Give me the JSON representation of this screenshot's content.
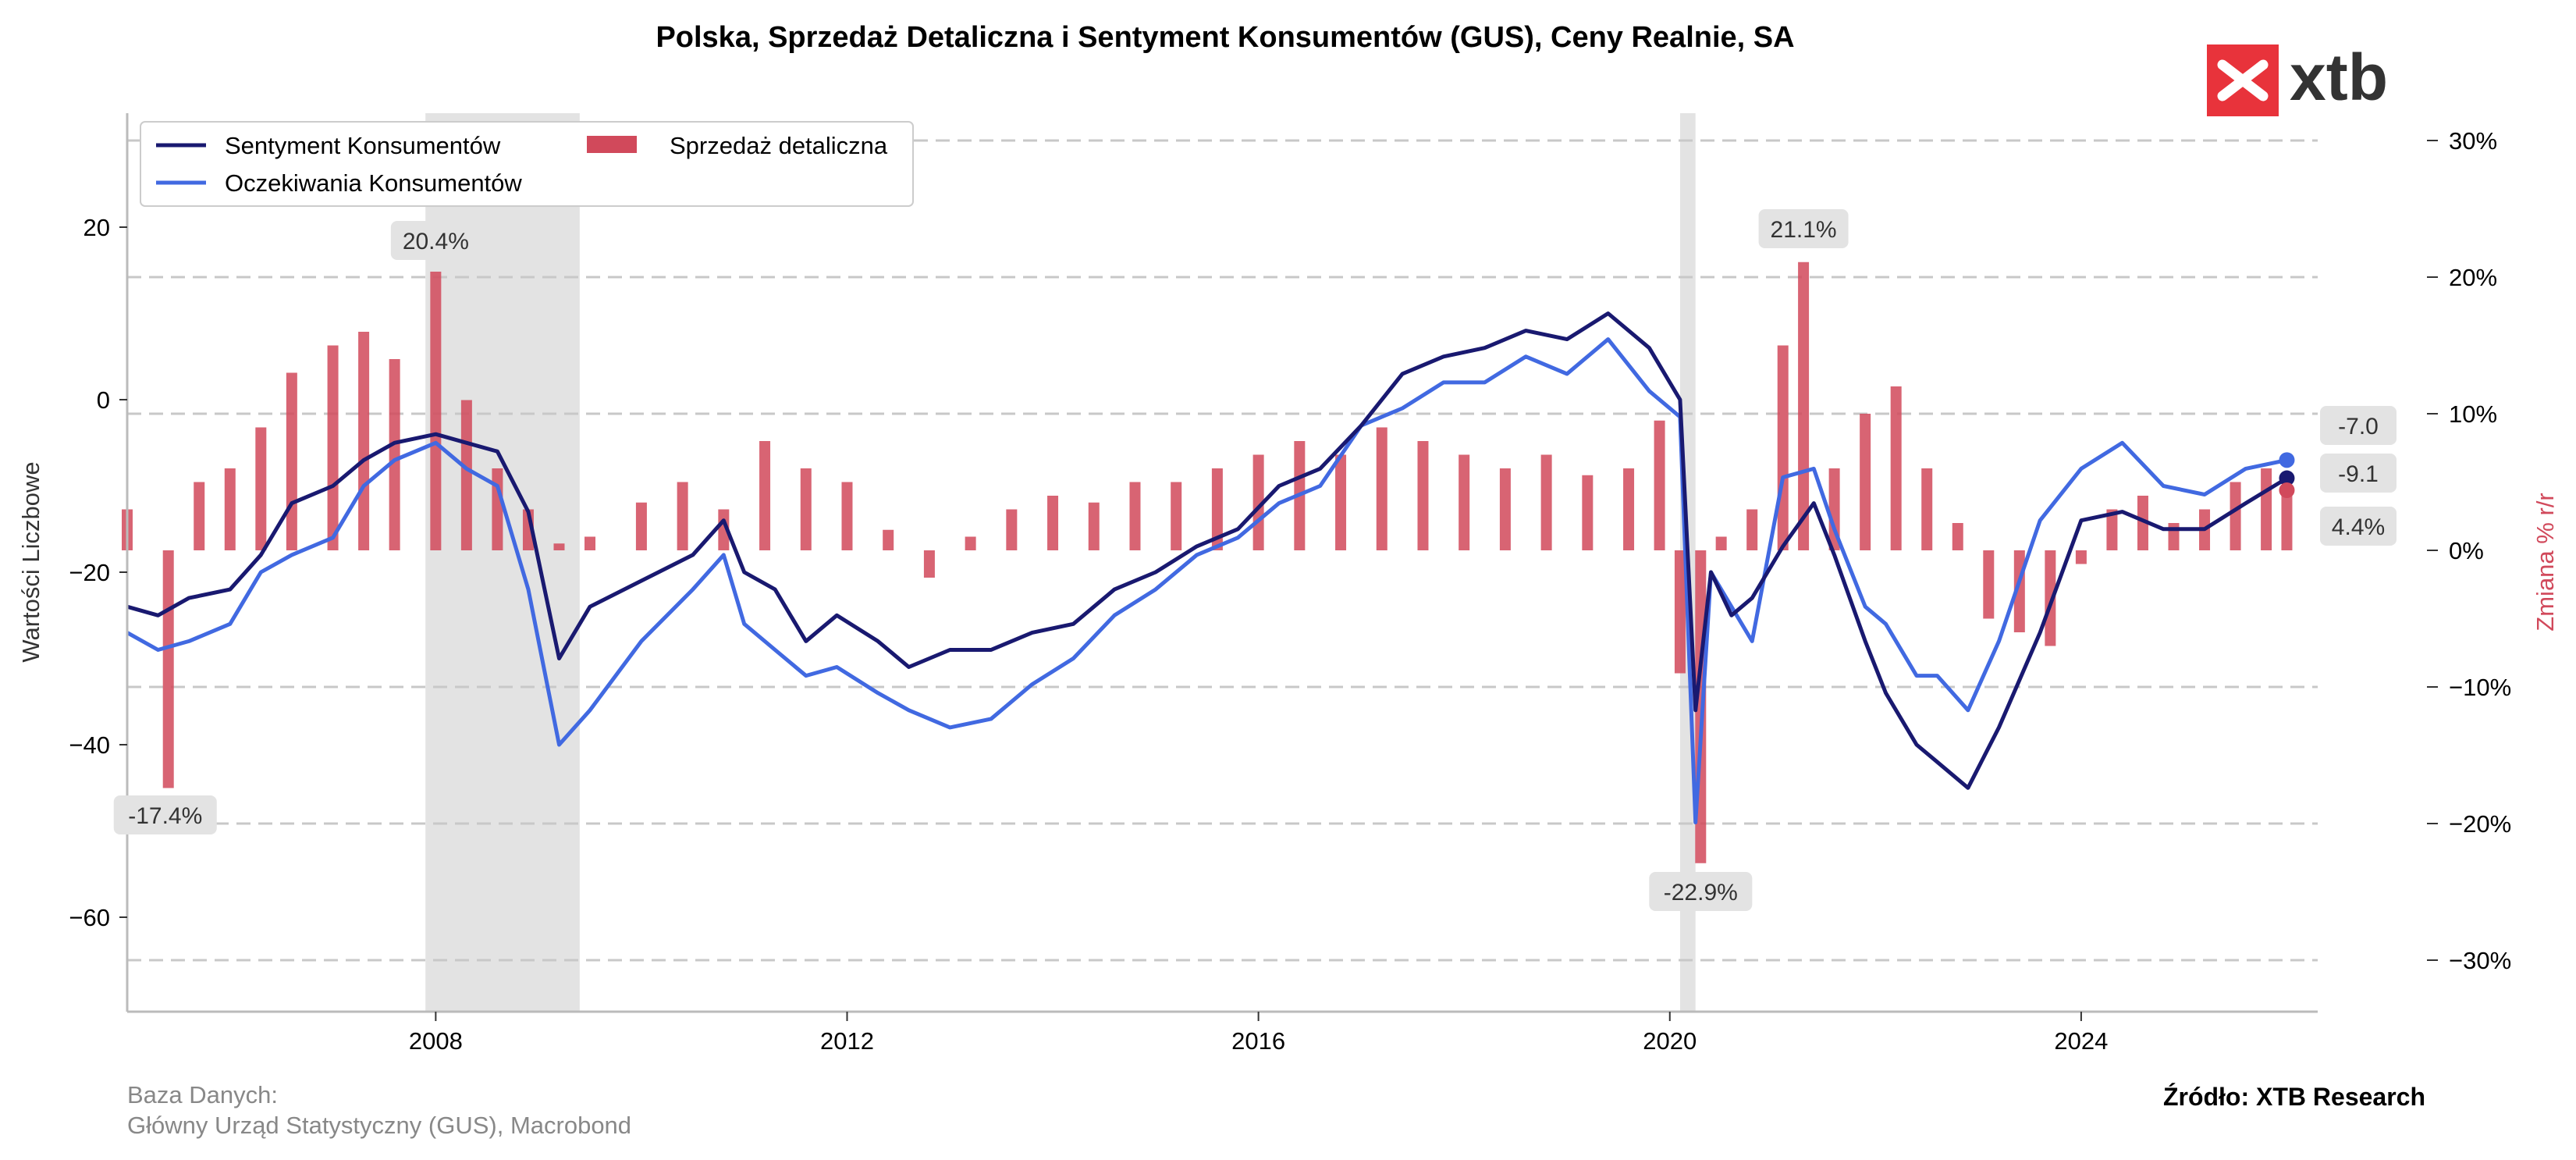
{
  "title": "Polska, Sprzedaż Detaliczna i Sentyment Konsumentów (GUS), Ceny Realnie, SA",
  "logo": {
    "text": "xtb",
    "color": "#e8333b"
  },
  "source": {
    "line1": "Baza Danych:",
    "line2": "Główny Urząd Statystyczny (GUS), Macrobond"
  },
  "credit": "Źródło: XTB Research",
  "colors": {
    "sentiment": "#191970",
    "expectations": "#4169e1",
    "retail": "#d1495b",
    "shade": "#e3e3e3",
    "grid": "#c8c8c8"
  },
  "chart_data": {
    "type": "line",
    "title": "Polska, Sprzedaż Detaliczna i Sentyment Konsumentów (GUS), Ceny Realnie, SA",
    "xlim": [
      2005.0,
      2026.3
    ],
    "x_ticks": [
      "2008",
      "2012",
      "2016",
      "2020",
      "2024"
    ],
    "ylabel": "Wartości Liczbowe",
    "ylim": [
      -71,
      33
    ],
    "y_ticks": [
      "20",
      "0",
      "−20",
      "−40",
      "−60"
    ],
    "y2label": "Zmiana % r/r",
    "y2lim": [
      -34,
      30.9
    ],
    "y2_ticks": [
      "30%",
      "20%",
      "10%",
      "0%",
      "−10%",
      "−20%",
      "−30%"
    ],
    "grid": "horizontal dashed",
    "legend_position": "top-left",
    "legend": [
      "Sentyment Konsumentów",
      "Oczekiwania Konsumentów",
      "Sprzedaż detaliczna"
    ],
    "shaded_periods": [
      [
        2007.9,
        2009.4
      ],
      [
        2020.1,
        2020.25
      ]
    ],
    "series": [
      {
        "name": "Sentyment Konsumentów",
        "axis": "left",
        "type": "line",
        "x": [
          2005.0,
          2005.3,
          2005.6,
          2006.0,
          2006.3,
          2006.6,
          2007.0,
          2007.3,
          2007.6,
          2008.0,
          2008.3,
          2008.6,
          2008.9,
          2009.2,
          2009.5,
          2010.0,
          2010.5,
          2010.8,
          2011.0,
          2011.3,
          2011.6,
          2011.9,
          2012.3,
          2012.6,
          2013.0,
          2013.4,
          2013.8,
          2014.2,
          2014.6,
          2015.0,
          2015.4,
          2015.8,
          2016.2,
          2016.6,
          2017.0,
          2017.4,
          2017.8,
          2018.2,
          2018.6,
          2019.0,
          2019.4,
          2019.8,
          2020.1,
          2020.25,
          2020.4,
          2020.6,
          2020.8,
          2021.1,
          2021.4,
          2021.6,
          2021.9,
          2022.1,
          2022.4,
          2022.6,
          2022.9,
          2023.2,
          2023.6,
          2024.0,
          2024.4,
          2024.8,
          2025.2,
          2025.6,
          2026.0
        ],
        "y": [
          -24,
          -25,
          -23,
          -22,
          -18,
          -12,
          -10,
          -7,
          -5,
          -4,
          -5,
          -6,
          -13,
          -30,
          -24,
          -21,
          -18,
          -14,
          -20,
          -22,
          -28,
          -25,
          -28,
          -31,
          -29,
          -29,
          -27,
          -26,
          -22,
          -20,
          -17,
          -15,
          -10,
          -8,
          -3,
          3,
          5,
          6,
          8,
          7,
          10,
          6,
          0,
          -36,
          -20,
          -25,
          -23,
          -17,
          -12,
          -18,
          -28,
          -34,
          -40,
          -42,
          -45,
          -38,
          -27,
          -14,
          -13,
          -15,
          -15,
          -12,
          -9.1
        ]
      },
      {
        "name": "Oczekiwania Konsumentów",
        "axis": "left",
        "type": "line",
        "x": [
          2005.0,
          2005.3,
          2005.6,
          2006.0,
          2006.3,
          2006.6,
          2007.0,
          2007.3,
          2007.6,
          2008.0,
          2008.3,
          2008.6,
          2008.9,
          2009.2,
          2009.5,
          2010.0,
          2010.5,
          2010.8,
          2011.0,
          2011.3,
          2011.6,
          2011.9,
          2012.3,
          2012.6,
          2013.0,
          2013.4,
          2013.8,
          2014.2,
          2014.6,
          2015.0,
          2015.4,
          2015.8,
          2016.2,
          2016.6,
          2017.0,
          2017.4,
          2017.8,
          2018.2,
          2018.6,
          2019.0,
          2019.4,
          2019.8,
          2020.1,
          2020.25,
          2020.4,
          2020.6,
          2020.8,
          2021.1,
          2021.4,
          2021.6,
          2021.9,
          2022.1,
          2022.4,
          2022.6,
          2022.9,
          2023.2,
          2023.6,
          2024.0,
          2024.4,
          2024.8,
          2025.2,
          2025.6,
          2026.0
        ],
        "y": [
          -27,
          -29,
          -28,
          -26,
          -20,
          -18,
          -16,
          -10,
          -7,
          -5,
          -8,
          -10,
          -22,
          -40,
          -36,
          -28,
          -22,
          -18,
          -26,
          -29,
          -32,
          -31,
          -34,
          -36,
          -38,
          -37,
          -33,
          -30,
          -25,
          -22,
          -18,
          -16,
          -12,
          -10,
          -3,
          -1,
          2,
          2,
          5,
          3,
          7,
          1,
          -2,
          -49,
          -20,
          -24,
          -28,
          -9,
          -8,
          -15,
          -24,
          -26,
          -32,
          -32,
          -36,
          -28,
          -14,
          -8,
          -5,
          -10,
          -11,
          -8,
          -7.0
        ]
      },
      {
        "name": "Sprzedaż detaliczna",
        "axis": "right",
        "type": "bar",
        "x": [
          2005.0,
          2005.4,
          2005.7,
          2006.0,
          2006.3,
          2006.6,
          2007.0,
          2007.3,
          2007.6,
          2008.0,
          2008.3,
          2008.6,
          2008.9,
          2009.2,
          2009.5,
          2010.0,
          2010.4,
          2010.8,
          2011.2,
          2011.6,
          2012.0,
          2012.4,
          2012.8,
          2013.2,
          2013.6,
          2014.0,
          2014.4,
          2014.8,
          2015.2,
          2015.6,
          2016.0,
          2016.4,
          2016.8,
          2017.2,
          2017.6,
          2018.0,
          2018.4,
          2018.8,
          2019.2,
          2019.6,
          2019.9,
          2020.1,
          2020.3,
          2020.5,
          2020.8,
          2021.1,
          2021.3,
          2021.6,
          2021.9,
          2022.2,
          2022.5,
          2022.8,
          2023.1,
          2023.4,
          2023.7,
          2024.0,
          2024.3,
          2024.6,
          2024.9,
          2025.2,
          2025.5,
          2025.8,
          2026.0
        ],
        "y": [
          3.0,
          -17.4,
          5.0,
          6.0,
          9.0,
          13.0,
          15.0,
          16.0,
          14.0,
          20.4,
          11.0,
          6.0,
          3.0,
          0.5,
          1.0,
          3.5,
          5.0,
          3.0,
          8.0,
          6.0,
          5.0,
          1.5,
          -2.0,
          1.0,
          3.0,
          4.0,
          3.5,
          5.0,
          5.0,
          6.0,
          7.0,
          8.0,
          7.0,
          9.0,
          8.0,
          7.0,
          6.0,
          7.0,
          5.5,
          6.0,
          9.5,
          -9.0,
          -22.9,
          1.0,
          3.0,
          15.0,
          21.1,
          6.0,
          10.0,
          12.0,
          6.0,
          2.0,
          -5.0,
          -6.0,
          -7.0,
          -1.0,
          3.0,
          4.0,
          2.0,
          3.0,
          5.0,
          6.0,
          4.4
        ]
      }
    ],
    "annotations": [
      {
        "text": "20.4%",
        "x": 2008.0,
        "y": 20.4,
        "axis": "right"
      },
      {
        "text": "-17.4%",
        "x": 2005.3,
        "y": -17.4,
        "axis": "right"
      },
      {
        "text": "21.1%",
        "x": 2021.3,
        "y": 21.1,
        "axis": "right"
      },
      {
        "text": "-22.9%",
        "x": 2020.3,
        "y": -22.9,
        "axis": "right"
      },
      {
        "text": "-7.0",
        "series": "Oczekiwania Konsumentów"
      },
      {
        "text": "-9.1",
        "series": "Sentyment Konsumentów"
      },
      {
        "text": "4.4%",
        "series": "Sprzedaż detaliczna"
      }
    ]
  }
}
